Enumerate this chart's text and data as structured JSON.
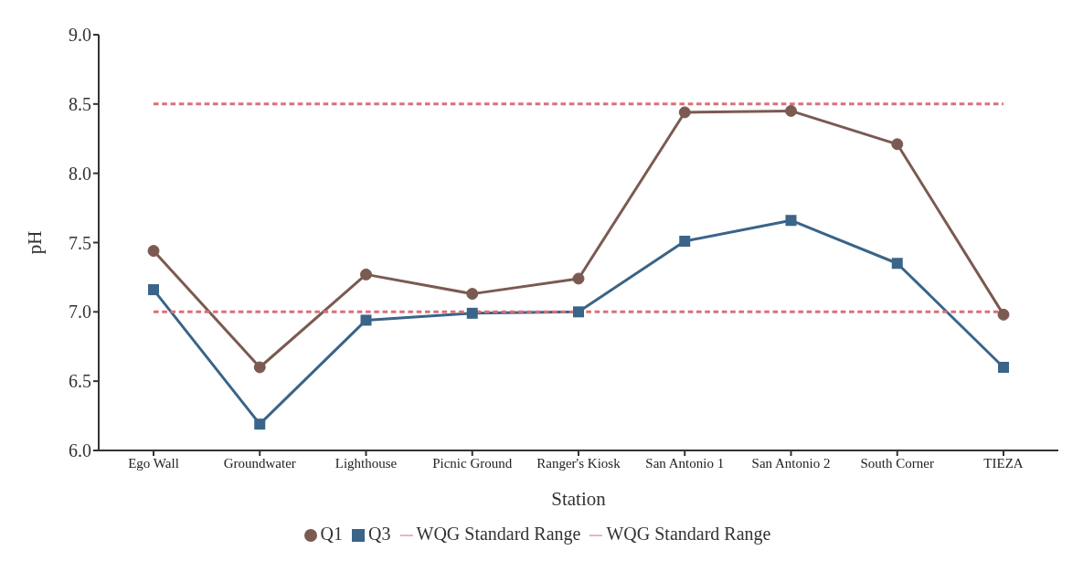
{
  "chart_data": {
    "type": "line",
    "xlabel": "Station",
    "ylabel": "pH",
    "categories": [
      "Ego Wall",
      "Groundwater",
      "Lighthouse",
      "Picnic Ground",
      "Ranger's Kiosk",
      "San Antonio 1",
      "San Antonio 2",
      "South Corner",
      "TIEZA"
    ],
    "series": [
      {
        "name": "Q1",
        "color": "#7b5a52",
        "marker": "circle",
        "line_style": "solid",
        "values": [
          7.44,
          6.6,
          7.27,
          7.13,
          7.24,
          8.44,
          8.45,
          8.21,
          6.98
        ]
      },
      {
        "name": "Q3",
        "color": "#3a6488",
        "marker": "square",
        "line_style": "solid",
        "values": [
          7.16,
          6.19,
          6.94,
          6.99,
          7.0,
          7.51,
          7.66,
          7.35,
          6.6
        ]
      },
      {
        "name": "WQG Standard Range",
        "color": "#d9707a",
        "marker": "none",
        "line_style": "dashed",
        "values": [
          8.5,
          8.5,
          8.5,
          8.5,
          8.5,
          8.5,
          8.5,
          8.5,
          8.5
        ]
      },
      {
        "name": "WQG Standard Range",
        "color": "#d9707a",
        "marker": "none",
        "line_style": "dashed",
        "values": [
          7.0,
          7.0,
          7.0,
          7.0,
          7.0,
          7.0,
          7.0,
          7.0,
          7.0
        ]
      }
    ],
    "ylim": [
      6,
      9
    ],
    "yticks": [
      {
        "value": 6,
        "label": "6.0"
      },
      {
        "value": 6.5,
        "label": "6.5"
      },
      {
        "value": 7,
        "label": "7.0"
      },
      {
        "value": 7.5,
        "label": "7.5"
      },
      {
        "value": 8,
        "label": "8.0"
      },
      {
        "value": 8.5,
        "label": "8.5"
      },
      {
        "value": 9,
        "label": "9.0"
      }
    ],
    "grid": false,
    "legend": "bottom"
  }
}
